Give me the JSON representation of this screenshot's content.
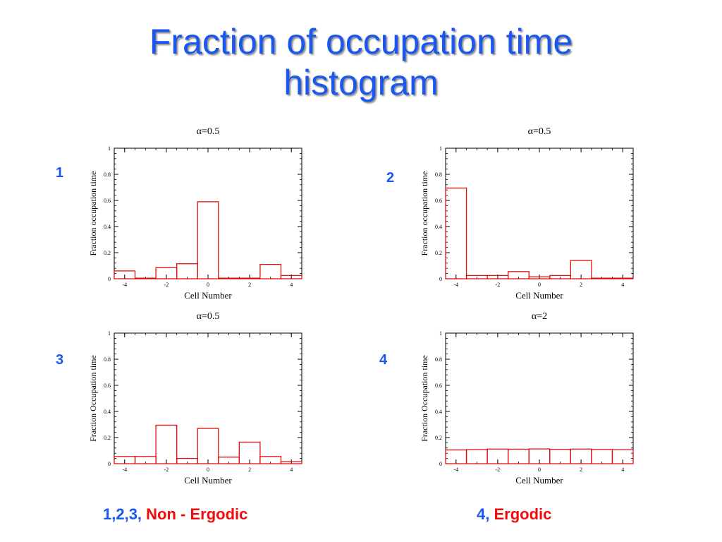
{
  "title": {
    "line1": "Fraction of occupation time",
    "line2": "histogram"
  },
  "panels": [
    "1",
    "2",
    "3",
    "4"
  ],
  "captions": {
    "left_prefix": "1,2,3,",
    "left_label": "Non - Ergodic",
    "right_prefix": "4,",
    "right_label": "Ergodic"
  },
  "colors": {
    "title": "#1a56f0",
    "accent_red": "#f00c0c",
    "bar_stroke": "#e01010"
  },
  "chart_data": [
    {
      "type": "bar",
      "title": "α=0.5",
      "xlabel": "Cell Number",
      "ylabel": "Fraction occupation time",
      "categories": [
        -4,
        -3,
        -2,
        -1,
        0,
        1,
        2,
        3,
        4
      ],
      "values": [
        0.06,
        0.005,
        0.085,
        0.115,
        0.59,
        0.005,
        0.005,
        0.11,
        0.025
      ],
      "xlim": [
        -4.5,
        4.5
      ],
      "ylim": [
        0,
        1
      ],
      "xticks": [
        -4,
        -2,
        0,
        2,
        4
      ],
      "yticks": [
        0,
        0.2,
        0.4,
        0.6,
        0.8,
        1
      ],
      "ytick_labels": [
        "0",
        "0.2",
        "0.4",
        "0.6",
        "0.8",
        "1"
      ]
    },
    {
      "type": "bar",
      "title": "α=0.5",
      "xlabel": "Cell Number",
      "ylabel": "Fraction occupation time",
      "categories": [
        -4,
        -3,
        -2,
        -1,
        0,
        1,
        2,
        3,
        4
      ],
      "values": [
        0.695,
        0.025,
        0.025,
        0.055,
        0.015,
        0.025,
        0.14,
        0.005,
        0.005
      ],
      "xlim": [
        -4.5,
        4.5
      ],
      "ylim": [
        0,
        1
      ],
      "xticks": [
        -4,
        -2,
        0,
        2,
        4
      ],
      "yticks": [
        0,
        0.2,
        0.4,
        0.6,
        0.8,
        1
      ],
      "ytick_labels": [
        "0",
        "0.2",
        "0.4",
        "0.6",
        "0.8",
        "1"
      ]
    },
    {
      "type": "bar",
      "title": "α=0.5",
      "xlabel": "Cell Number",
      "ylabel": "Fraction Occupation time",
      "categories": [
        -4,
        -3,
        -2,
        -1,
        0,
        1,
        2,
        3,
        4
      ],
      "values": [
        0.055,
        0.055,
        0.295,
        0.04,
        0.27,
        0.05,
        0.165,
        0.055,
        0.015
      ],
      "xlim": [
        -4.5,
        4.5
      ],
      "ylim": [
        0,
        1
      ],
      "xticks": [
        -4,
        -2,
        0,
        2,
        4
      ],
      "yticks": [
        0,
        0.2,
        0.4,
        0.6,
        0.8,
        1
      ],
      "ytick_labels": [
        "0",
        "0.2",
        "0.4",
        "0.6",
        "0.8",
        "1"
      ]
    },
    {
      "type": "bar",
      "title": "α=2",
      "xlabel": "Cell Number",
      "ylabel": "Fraction Occupation time",
      "categories": [
        -4,
        -3,
        -2,
        -1,
        0,
        1,
        2,
        3,
        4
      ],
      "values": [
        0.105,
        0.108,
        0.112,
        0.111,
        0.113,
        0.11,
        0.112,
        0.109,
        0.106
      ],
      "xlim": [
        -4.5,
        4.5
      ],
      "ylim": [
        0,
        1
      ],
      "xticks": [
        -4,
        -2,
        0,
        2,
        4
      ],
      "yticks": [
        0,
        0.2,
        0.4,
        0.6,
        0.8,
        1
      ],
      "ytick_labels": [
        "0",
        "0.2",
        "0.4",
        "0.6",
        "0.8",
        "1"
      ]
    }
  ]
}
